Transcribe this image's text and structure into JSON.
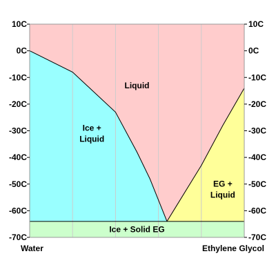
{
  "chart_data": {
    "type": "area",
    "title": "",
    "xlabel": "",
    "ylabel": "",
    "x_unit": "fraction ethylene glycol",
    "xlim": [
      0,
      1
    ],
    "ylim": [
      -70,
      10
    ],
    "y_tick_values": [
      10,
      0,
      -10,
      -20,
      -30,
      -40,
      -50,
      -60,
      -70
    ],
    "y_tick_labels": [
      "10C",
      "0C",
      "-10C",
      "-20C",
      "-30C",
      "-40C",
      "-50C",
      "-60C",
      "-70C"
    ],
    "x_end_labels": [
      "Water",
      "Ethylene Glycol"
    ],
    "grid": true,
    "grid_x": [
      0.2,
      0.4,
      0.6,
      0.8
    ],
    "eutectic": {
      "x": 0.64,
      "y": -64
    },
    "liquidus_water_side": [
      {
        "x": 0.0,
        "y": 0
      },
      {
        "x": 0.2,
        "y": -8
      },
      {
        "x": 0.4,
        "y": -23
      },
      {
        "x": 0.5,
        "y": -38
      },
      {
        "x": 0.56,
        "y": -48
      },
      {
        "x": 0.64,
        "y": -64
      }
    ],
    "liquidus_eg_side": [
      {
        "x": 0.64,
        "y": -64
      },
      {
        "x": 0.8,
        "y": -43
      },
      {
        "x": 0.9,
        "y": -28
      },
      {
        "x": 1.0,
        "y": -14
      }
    ],
    "regions": [
      {
        "label_lines": [
          "Liquid"
        ],
        "color": "#ffcccc",
        "label_pos": {
          "x": 0.5,
          "y": -13
        }
      },
      {
        "label_lines": [
          "Ice +",
          "Liquid"
        ],
        "color": "#99ffff",
        "label_pos": {
          "x": 0.29,
          "y": -31
        }
      },
      {
        "label_lines": [
          "EG +",
          "Liquid"
        ],
        "color": "#ffff99",
        "label_pos": {
          "x": 0.9,
          "y": -52
        }
      },
      {
        "label_lines": [
          "Ice + Solid EG"
        ],
        "color": "#ccffcc",
        "label_pos": {
          "x": 0.5,
          "y": -67
        }
      }
    ]
  },
  "colors": {
    "liquid": "#ffcccc",
    "ice_liquid": "#99ffff",
    "eg_liquid": "#ffff99",
    "solid": "#ccffcc",
    "grid": "#cccccc",
    "frame": "#999999"
  }
}
